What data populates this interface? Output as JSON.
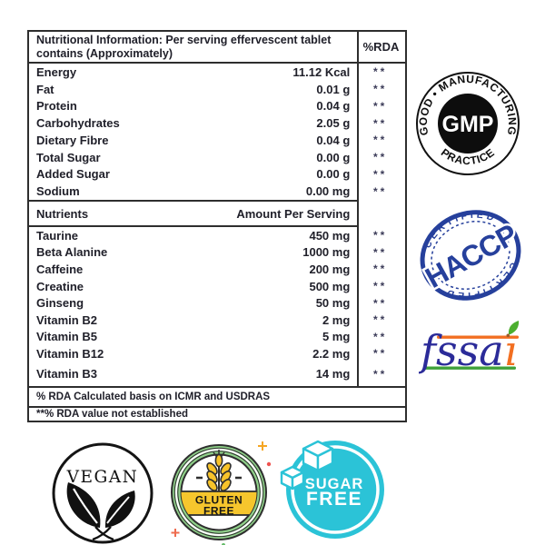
{
  "table": {
    "header_title": "Nutritional Information: Per serving effervescent tablet contains (Approximately)",
    "rda_header": "%RDA",
    "section1": [
      {
        "label": "Energy",
        "value": "11.12 Kcal",
        "rda": "**"
      },
      {
        "label": "Fat",
        "value": "0.01 g",
        "rda": "**"
      },
      {
        "label": "Protein",
        "value": "0.04 g",
        "rda": "**"
      },
      {
        "label": "Carbohydrates",
        "value": "2.05 g",
        "rda": "**"
      },
      {
        "label": "Dietary Fibre",
        "value": "0.04 g",
        "rda": "**"
      },
      {
        "label": "Total Sugar",
        "value": "0.00 g",
        "rda": "**"
      },
      {
        "label": "Added Sugar",
        "value": "0.00 g",
        "rda": "**"
      },
      {
        "label": "Sodium",
        "value": "0.00 mg",
        "rda": "**"
      }
    ],
    "section2_header": {
      "label": "Nutrients",
      "value": "Amount Per Serving"
    },
    "section2": [
      {
        "label": "Taurine",
        "value": "450 mg",
        "rda": "**"
      },
      {
        "label": "Beta Alanine",
        "value": "1000 mg",
        "rda": "**"
      },
      {
        "label": "Caffeine",
        "value": "200 mg",
        "rda": "**"
      },
      {
        "label": "Creatine",
        "value": "500 mg",
        "rda": "**"
      },
      {
        "label": "Ginseng",
        "value": "50 mg",
        "rda": "**"
      },
      {
        "label": "Vitamin B2",
        "value": "2 mg",
        "rda": "**"
      },
      {
        "label": "Vitamin B5",
        "value": "5 mg",
        "rda": "**"
      },
      {
        "label": "Vitamin B12",
        "value": "2.2 mg",
        "rda": "**"
      }
    ],
    "last_row": {
      "label": "Vitamin B3",
      "value": "14 mg",
      "rda": "**"
    },
    "footnotes": [
      "% RDA Calculated basis on ICMR and USDRAS",
      "**% RDA value not established"
    ]
  },
  "badges": {
    "gmp": {
      "center": "GMP",
      "arc_top": "GOOD • MANUFACTURING",
      "arc_bottom": "• PRACTICE •"
    },
    "haccp": {
      "name": "HACCP",
      "arc_top": "CERTIFIED",
      "arc_bottom": "CERTIFIED"
    },
    "fssai": {
      "text_main": "fssa",
      "text_i": "ı"
    },
    "vegan": {
      "label": "VEGAN"
    },
    "gluten_free": {
      "line1": "GLUTEN",
      "line2": "FREE"
    },
    "sugar_free": {
      "line1": "SUGAR",
      "line2": "FREE"
    }
  },
  "colors": {
    "table_text": "#20202a",
    "table_border": "#2e2e2e",
    "haccp_blue": "#26409c",
    "sugar_free_teal": "#2bc3d7",
    "gluten_green": "#8fd189",
    "gluten_yellow": "#f6c62d",
    "fssai_navy": "#2b2b99",
    "fssai_orange": "#f26f21",
    "fssai_green": "#3fa13a",
    "gmp_black": "#0d0d0d"
  }
}
